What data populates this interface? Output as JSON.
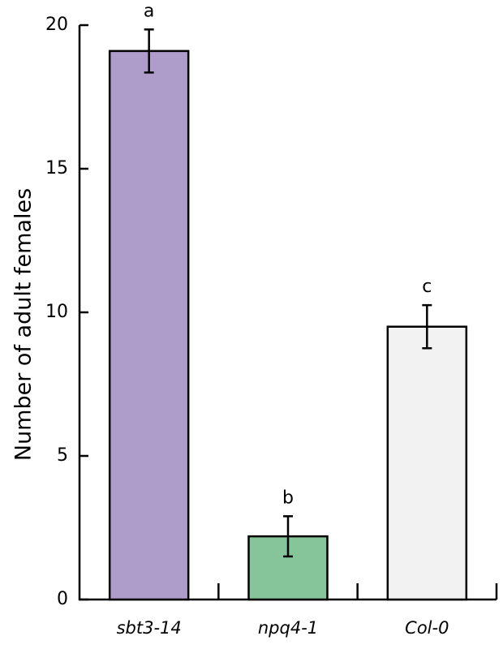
{
  "chart_data": {
    "type": "bar",
    "y_label": "Number of adult females",
    "categories": [
      "sbt3-14",
      "npq4-1",
      "Col-0"
    ],
    "values": [
      19.1,
      2.2,
      9.5
    ],
    "errors": [
      0.75,
      0.7,
      0.75
    ],
    "colors": [
      "#ae9ccb",
      "#86c49a",
      "#f2f2f2"
    ],
    "significance": [
      "a",
      "b",
      "c"
    ],
    "ylim": [
      0,
      20
    ],
    "yticks": [
      0,
      5,
      10,
      15,
      20
    ]
  }
}
